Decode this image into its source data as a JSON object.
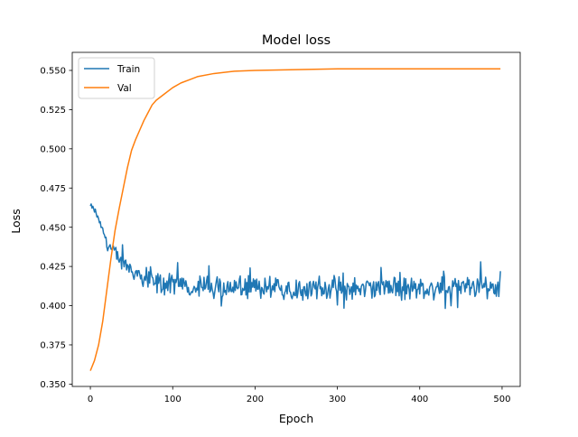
{
  "chart_data": {
    "type": "line",
    "title": "Model loss",
    "xlabel": "Epoch",
    "ylabel": "Loss",
    "xlim": [
      -22,
      522
    ],
    "ylim": [
      0.3485,
      0.5615
    ],
    "xticks": [
      0,
      100,
      200,
      300,
      400,
      500
    ],
    "yticks": [
      0.35,
      0.375,
      0.4,
      0.425,
      0.45,
      0.475,
      0.5,
      0.525,
      0.55
    ],
    "xtick_labels": [
      "0",
      "100",
      "200",
      "300",
      "400",
      "500"
    ],
    "ytick_labels": [
      "0.350",
      "0.375",
      "0.400",
      "0.425",
      "0.450",
      "0.475",
      "0.500",
      "0.525",
      "0.550"
    ],
    "grid": false,
    "legend_position": "top-left",
    "series": [
      {
        "name": "Train",
        "color": "#1f77b4",
        "description_points": [
          [
            0,
            0.4635
          ],
          [
            5,
            0.461
          ],
          [
            10,
            0.455
          ],
          [
            15,
            0.448
          ],
          [
            20,
            0.441
          ],
          [
            25,
            0.436
          ],
          [
            30,
            0.433
          ],
          [
            40,
            0.427
          ],
          [
            50,
            0.423
          ],
          [
            60,
            0.419
          ],
          [
            70,
            0.416
          ],
          [
            80,
            0.414
          ],
          [
            100,
            0.413
          ],
          [
            150,
            0.412
          ],
          [
            200,
            0.411
          ],
          [
            300,
            0.411
          ],
          [
            400,
            0.411
          ],
          [
            498,
            0.412
          ]
        ],
        "end_value": 0.422
      },
      {
        "name": "Val",
        "color": "#ff7f0e",
        "points": [
          [
            0,
            0.3585
          ],
          [
            5,
            0.365
          ],
          [
            10,
            0.375
          ],
          [
            15,
            0.39
          ],
          [
            20,
            0.41
          ],
          [
            25,
            0.43
          ],
          [
            30,
            0.448
          ],
          [
            35,
            0.462
          ],
          [
            40,
            0.475
          ],
          [
            45,
            0.488
          ],
          [
            50,
            0.499
          ],
          [
            55,
            0.506
          ],
          [
            60,
            0.512
          ],
          [
            65,
            0.518
          ],
          [
            70,
            0.523
          ],
          [
            75,
            0.528
          ],
          [
            80,
            0.531
          ],
          [
            90,
            0.535
          ],
          [
            100,
            0.539
          ],
          [
            110,
            0.542
          ],
          [
            120,
            0.544
          ],
          [
            130,
            0.546
          ],
          [
            150,
            0.548
          ],
          [
            175,
            0.5495
          ],
          [
            200,
            0.55
          ],
          [
            250,
            0.5505
          ],
          [
            300,
            0.551
          ],
          [
            400,
            0.551
          ],
          [
            498,
            0.551
          ]
        ]
      }
    ]
  }
}
